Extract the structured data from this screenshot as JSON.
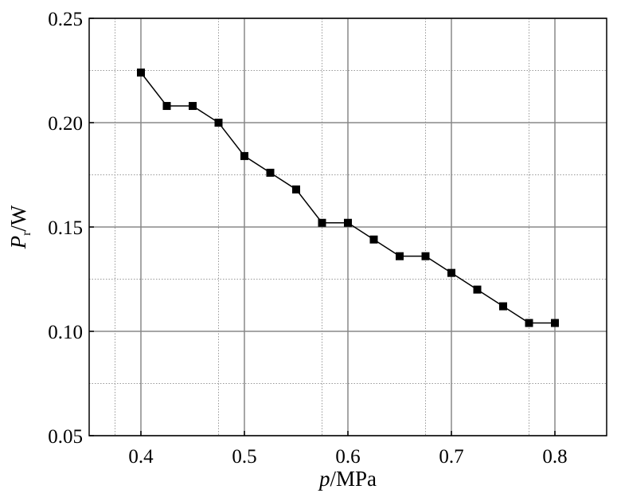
{
  "chart_data": {
    "type": "line",
    "title": "",
    "xlabel": {
      "italic": "p",
      "rest": "/MPa"
    },
    "ylabel": {
      "italic": "P",
      "sub": "r",
      "rest": "/W"
    },
    "xlim": [
      0.35,
      0.85
    ],
    "ylim": [
      0.05,
      0.25
    ],
    "xticks": [
      "0.4",
      "0.5",
      "0.6",
      "0.7",
      "0.8"
    ],
    "xtick_values": [
      0.4,
      0.5,
      0.6,
      0.7,
      0.8
    ],
    "yticks": [
      "0.05",
      "0.10",
      "0.15",
      "0.20",
      "0.25"
    ],
    "ytick_values": [
      0.05,
      0.1,
      0.15,
      0.2,
      0.25
    ],
    "grid": true,
    "series": [
      {
        "name": "Pr",
        "marker": "square",
        "color": "#000000",
        "x": [
          0.4,
          0.425,
          0.45,
          0.475,
          0.5,
          0.525,
          0.55,
          0.575,
          0.6,
          0.625,
          0.65,
          0.675,
          0.7,
          0.725,
          0.75,
          0.775,
          0.8
        ],
        "y": [
          0.224,
          0.208,
          0.208,
          0.2,
          0.184,
          0.176,
          0.168,
          0.152,
          0.152,
          0.144,
          0.136,
          0.136,
          0.128,
          0.12,
          0.112,
          0.104,
          0.104
        ]
      }
    ]
  }
}
